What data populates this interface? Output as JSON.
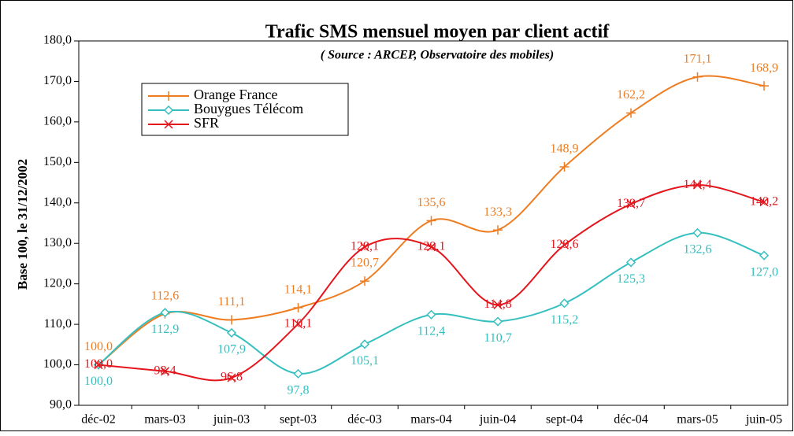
{
  "chart_data": {
    "type": "line",
    "title": "Trafic SMS mensuel moyen par client actif",
    "subtitle": "( Source : ARCEP, Observatoire des mobiles)",
    "y_label": "Base 100, le 31/12/2002",
    "categories": [
      "déc-02",
      "mars-03",
      "juin-03",
      "sept-03",
      "déc-03",
      "mars-04",
      "juin-04",
      "sept-04",
      "déc-04",
      "mars-05",
      "juin-05"
    ],
    "series": [
      {
        "name": "Orange France",
        "color": "#ee7d22",
        "marker": "plus",
        "values": [
          100.0,
          112.6,
          111.1,
          114.1,
          120.7,
          135.6,
          133.3,
          148.9,
          162.2,
          171.1,
          168.9
        ],
        "value_labels": [
          "100,0",
          "112,6",
          "111,1",
          "114,1",
          "120,7",
          "135,6",
          "133,3",
          "148,9",
          "162,2",
          "171,1",
          "168,9"
        ]
      },
      {
        "name": "Bouygues Télécom",
        "color": "#35bfbf",
        "marker": "diamond",
        "values": [
          100.0,
          112.9,
          107.9,
          97.8,
          105.1,
          112.4,
          110.7,
          115.2,
          125.3,
          132.6,
          127.0
        ],
        "value_labels": [
          "100,0",
          "112,9",
          "107,9",
          "97,8",
          "105,1",
          "112,4",
          "110,7",
          "115,2",
          "125,3",
          "132,6",
          "127,0"
        ]
      },
      {
        "name": "SFR",
        "color": "#e4151c",
        "marker": "cross",
        "values": [
          100.0,
          98.4,
          96.8,
          110.1,
          129.1,
          129.1,
          114.8,
          129.6,
          139.7,
          144.4,
          140.2
        ],
        "value_labels": [
          "100,0",
          "98,4",
          "96,8",
          "110,1",
          "129,1",
          "129,1",
          "114,8",
          "129,6",
          "139,7",
          "144,4",
          "140,2"
        ]
      }
    ],
    "ylim": [
      90,
      180
    ],
    "yticks": [
      {
        "value": 90,
        "label": "90,0"
      },
      {
        "value": 100,
        "label": "100,0"
      },
      {
        "value": 110,
        "label": "110,0"
      },
      {
        "value": 120,
        "label": "120,0"
      },
      {
        "value": 130,
        "label": "130,0"
      },
      {
        "value": 140,
        "label": "140,0"
      },
      {
        "value": 150,
        "label": "150,0"
      },
      {
        "value": 160,
        "label": "160,0"
      },
      {
        "value": 170,
        "label": "170,0"
      },
      {
        "value": 180,
        "label": "180,0"
      }
    ],
    "legend": "upper left"
  }
}
